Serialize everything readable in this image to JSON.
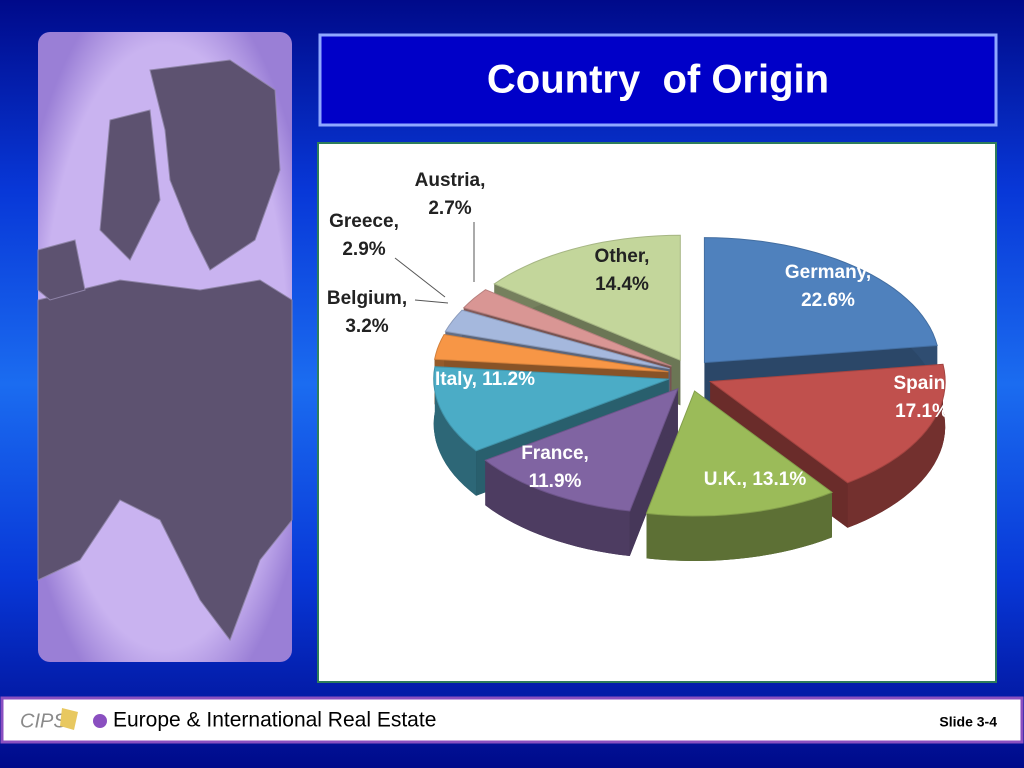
{
  "slide": {
    "title": "Country  of Origin",
    "footer": {
      "logo": "CIPS",
      "text": "Europe & International Real Estate",
      "slide_number": "Slide 3-4"
    }
  },
  "chart_data": {
    "type": "pie",
    "values": [
      22.6,
      17.1,
      13.1,
      11.9,
      11.2,
      3.2,
      2.9,
      2.7,
      14.4
    ],
    "value_labels": [
      "Germany, 22.6%",
      "Spain, 17.1%",
      "U.K., 13.1%",
      "France, 11.9%",
      "Italy, 11.2%",
      "Belgium, 3.2%",
      "Greece, 2.9%",
      "Austria, 2.7%",
      "Other, 14.4%"
    ],
    "colors": [
      "#4f81bd",
      "#c0504d",
      "#9bbb59",
      "#8064a2",
      "#4bacc6",
      "#f79646",
      "#a5b8dd",
      "#d99694",
      "#c3d69b"
    ]
  }
}
